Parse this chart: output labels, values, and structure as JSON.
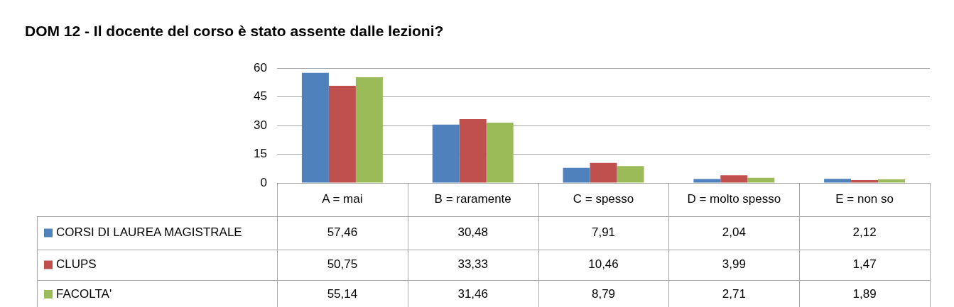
{
  "chart_data": {
    "type": "bar",
    "title": "DOM 12 - Il docente del corso è stato assente dalle lezioni?",
    "categories": [
      "A = mai",
      "B = raramente",
      "C = spesso",
      "D = molto spesso",
      "E = non so"
    ],
    "series": [
      {
        "name": "CORSI DI LAUREA MAGISTRALE",
        "color": "#4f81bd",
        "values": [
          57.46,
          30.48,
          7.91,
          2.04,
          2.12
        ],
        "value_labels": [
          "57,46",
          "30,48",
          "7,91",
          "2,04",
          "2,12"
        ]
      },
      {
        "name": "CLUPS",
        "color": "#c0504d",
        "values": [
          50.75,
          33.33,
          10.46,
          3.99,
          1.47
        ],
        "value_labels": [
          "50,75",
          "33,33",
          "10,46",
          "3,99",
          "1,47"
        ]
      },
      {
        "name": "FACOLTA'",
        "color": "#9bbb59",
        "values": [
          55.14,
          31.46,
          8.79,
          2.71,
          1.89
        ],
        "value_labels": [
          "55,14",
          "31,46",
          "8,79",
          "2,71",
          "1,89"
        ]
      }
    ],
    "ylim": [
      0,
      60
    ],
    "yticks": [
      0,
      15,
      30,
      45,
      60
    ],
    "grid": "y",
    "legend": "bottom left"
  }
}
